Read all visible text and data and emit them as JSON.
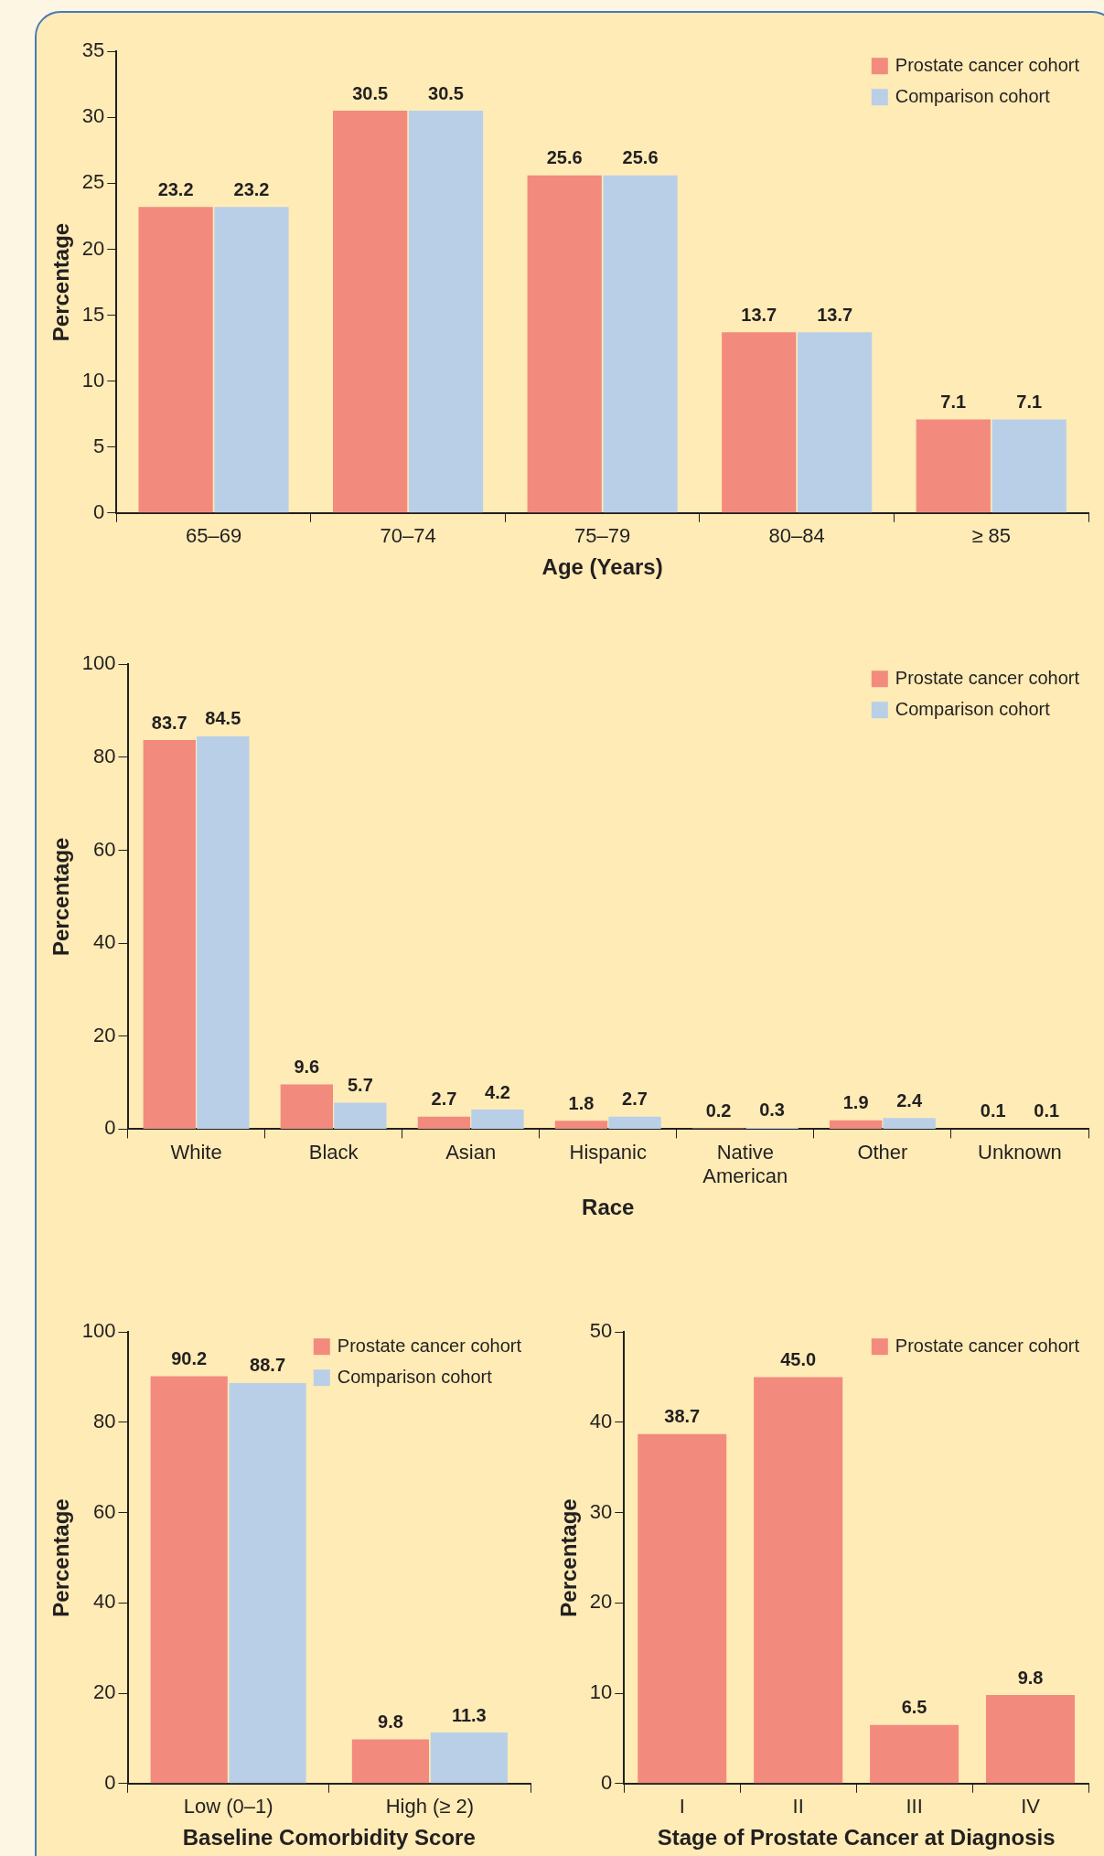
{
  "chart_data": [
    {
      "type": "bar",
      "xlabel": "Age (Years)",
      "ylabel": "Percentage",
      "categories": [
        "65–69",
        "70–74",
        "75–79",
        "80–84",
        "≥ 85"
      ],
      "ylim": [
        0,
        35
      ],
      "yticks": [
        0,
        5,
        10,
        15,
        20,
        25,
        30,
        35
      ],
      "grid": false,
      "legend": "top right",
      "series": [
        {
          "name": "Prostate cancer cohort",
          "color": "#f28b7d",
          "values": [
            23.2,
            30.5,
            25.6,
            13.7,
            7.1
          ],
          "value_labels": [
            "23.2",
            "30.5",
            "25.6",
            "13.7",
            "7.1"
          ]
        },
        {
          "name": "Comparison cohort",
          "color": "#b9cfe8",
          "values": [
            23.2,
            30.5,
            25.6,
            13.7,
            7.1
          ],
          "value_labels": [
            "23.2",
            "30.5",
            "25.6",
            "13.7",
            "7.1"
          ]
        }
      ]
    },
    {
      "type": "bar",
      "xlabel": "Race",
      "ylabel": "Percentage",
      "categories": [
        "White",
        "Black",
        "Asian",
        "Hispanic",
        "Native American",
        "Other",
        "Unknown"
      ],
      "ylim": [
        0,
        100
      ],
      "yticks": [
        0,
        20,
        40,
        60,
        80,
        100
      ],
      "grid": false,
      "legend": "top right",
      "series": [
        {
          "name": "Prostate cancer cohort",
          "color": "#f28b7d",
          "values": [
            83.7,
            9.6,
            2.7,
            1.8,
            0.2,
            1.9,
            0.1
          ],
          "value_labels": [
            "83.7",
            "9.6",
            "2.7",
            "1.8",
            "0.2",
            "1.9",
            "0.1"
          ]
        },
        {
          "name": "Comparison cohort",
          "color": "#b9cfe8",
          "values": [
            84.5,
            5.7,
            4.2,
            2.7,
            0.3,
            2.4,
            0.1
          ],
          "value_labels": [
            "84.5",
            "5.7",
            "4.2",
            "2.7",
            "0.3",
            "2.4",
            "0.1"
          ]
        }
      ]
    },
    {
      "type": "bar",
      "xlabel": "Baseline Comorbidity Score",
      "ylabel": "Percentage",
      "categories": [
        "Low (0–1)",
        "High (≥ 2)"
      ],
      "ylim": [
        0,
        100
      ],
      "yticks": [
        0,
        20,
        40,
        60,
        80,
        100
      ],
      "grid": false,
      "legend": "top right",
      "series": [
        {
          "name": "Prostate cancer cohort",
          "color": "#f28b7d",
          "values": [
            90.2,
            9.8
          ],
          "value_labels": [
            "90.2",
            "9.8"
          ]
        },
        {
          "name": "Comparison cohort",
          "color": "#b9cfe8",
          "values": [
            88.7,
            11.3
          ],
          "value_labels": [
            "88.7",
            "11.3"
          ]
        }
      ]
    },
    {
      "type": "bar",
      "xlabel": "Stage of Prostate Cancer at Diagnosis",
      "ylabel": "Percentage",
      "categories": [
        "I",
        "II",
        "III",
        "IV"
      ],
      "ylim": [
        0,
        50
      ],
      "yticks": [
        0,
        10,
        20,
        30,
        40,
        50
      ],
      "grid": false,
      "legend": "top right",
      "series": [
        {
          "name": "Prostate cancer cohort",
          "color": "#f28b7d",
          "values": [
            38.7,
            45.0,
            6.5,
            9.8
          ],
          "value_labels": [
            "38.7",
            "45.0",
            "6.5",
            "9.8"
          ]
        }
      ]
    }
  ]
}
